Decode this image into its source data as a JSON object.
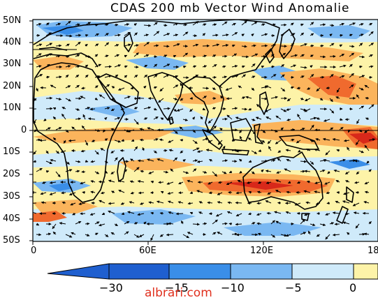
{
  "title": "CDAS 200 mb Vector Wind Anomalie",
  "lat_labels": [
    "50N",
    "40N",
    "30N",
    "20N",
    "10N",
    "0",
    "10S",
    "20S",
    "30S",
    "40S",
    "50S"
  ],
  "lon_labels": [
    "0",
    "60E",
    "120E",
    "18"
  ],
  "colorbar": {
    "labels": [
      "−30",
      "−15",
      "−10",
      "−5",
      "0"
    ],
    "colors": [
      "#1f5fcf",
      "#3a8ee8",
      "#7ab8f2",
      "#cfeafa",
      "#fdf3a8"
    ]
  },
  "shading_colors": {
    "strong_negative": "#3a8ee8",
    "negative": "#7ab8f2",
    "weak_negative": "#cfeafa",
    "weak_positive": "#fdf3a8",
    "positive": "#fbb45c",
    "strong_positive": "#f06a2e",
    "extreme_positive": "#d8281a"
  },
  "watermark": "albrari.com"
}
